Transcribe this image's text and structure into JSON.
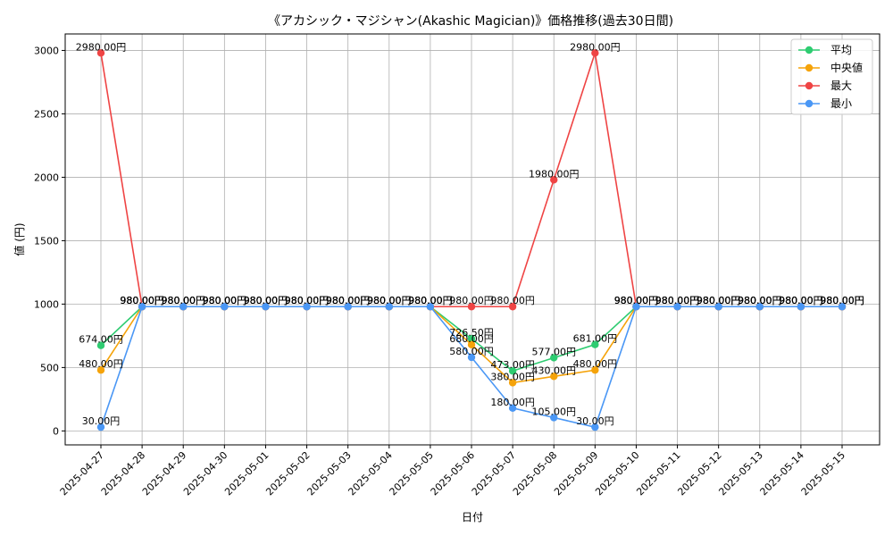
{
  "chart_data": {
    "type": "line",
    "title": "《アカシック・マジシャン(Akashic Magician)》価格推移(過去30日間)",
    "xlabel": "日付",
    "ylabel": "値 (円)",
    "ylim": [
      -110,
      3130
    ],
    "yticks": [
      0,
      500,
      1000,
      1500,
      2000,
      2500,
      3000
    ],
    "grid": true,
    "legend_position": "top-right",
    "categories": [
      "2025-04-27",
      "2025-04-28",
      "2025-04-29",
      "2025-04-30",
      "2025-05-01",
      "2025-05-02",
      "2025-05-03",
      "2025-05-04",
      "2025-05-05",
      "2025-05-06",
      "2025-05-07",
      "2025-05-08",
      "2025-05-09",
      "2025-05-10",
      "2025-05-11",
      "2025-05-12",
      "2025-05-13",
      "2025-05-14",
      "2025-05-15"
    ],
    "series": [
      {
        "name": "平均",
        "color": "#2ecc71",
        "values": [
          674,
          980,
          980,
          980,
          980,
          980,
          980,
          980,
          980,
          726.5,
          473,
          577,
          681,
          980,
          980,
          980,
          980,
          980,
          980
        ],
        "labels": [
          "674.00円",
          "980.00円",
          "980.00円",
          "980.00円",
          "980.00円",
          "980.00円",
          "980.00円",
          "980.00円",
          "980.00円",
          "726.50円",
          "473.00円",
          "577.00円",
          "681.00円",
          "980.00円",
          "980.00円",
          "980.00円",
          "980.00円",
          "980.00円",
          "980.00円"
        ]
      },
      {
        "name": "中央値",
        "color": "#f5a30a",
        "values": [
          480,
          980,
          980,
          980,
          980,
          980,
          980,
          980,
          980,
          680,
          380,
          430,
          480,
          980,
          980,
          980,
          980,
          980,
          980
        ],
        "labels": [
          "480.00円",
          "980.00円",
          "980.00円",
          "980.00円",
          "980.00円",
          "980.00円",
          "980.00円",
          "980.00円",
          "980.00円",
          "680.00円",
          "380.00円",
          "430.00円",
          "480.00円",
          "980.00円",
          "980.00円",
          "980.00円",
          "980.00円",
          "980.00円",
          "980.00円"
        ]
      },
      {
        "name": "最大",
        "color": "#ef4444",
        "values": [
          2980,
          980,
          980,
          980,
          980,
          980,
          980,
          980,
          980,
          980,
          980,
          1980,
          2980,
          980,
          980,
          980,
          980,
          980,
          980
        ],
        "labels": [
          "2980.00円",
          "980.00円",
          "980.00円",
          "980.00円",
          "980.00円",
          "980.00円",
          "980.00円",
          "980.00円",
          "980.00円",
          "980.00円",
          "980.00円",
          "1980.00円",
          "2980.00円",
          "980.00円",
          "980.00円",
          "980.00円",
          "980.00円",
          "980.00円",
          "980.00円"
        ]
      },
      {
        "name": "最小",
        "color": "#4a97f5",
        "values": [
          30,
          980,
          980,
          980,
          980,
          980,
          980,
          980,
          980,
          580,
          180,
          105,
          30,
          980,
          980,
          980,
          980,
          980,
          980
        ],
        "labels": [
          "30.00円",
          "980.00円",
          "980.00円",
          "980.00円",
          "980.00円",
          "980.00円",
          "980.00円",
          "980.00円",
          "980.00円",
          "580.00円",
          "180.00円",
          "105.00円",
          "30.00円",
          "980.00円",
          "980.00円",
          "980.00円",
          "980.00円",
          "980.00円",
          "980.00円"
        ]
      }
    ]
  }
}
